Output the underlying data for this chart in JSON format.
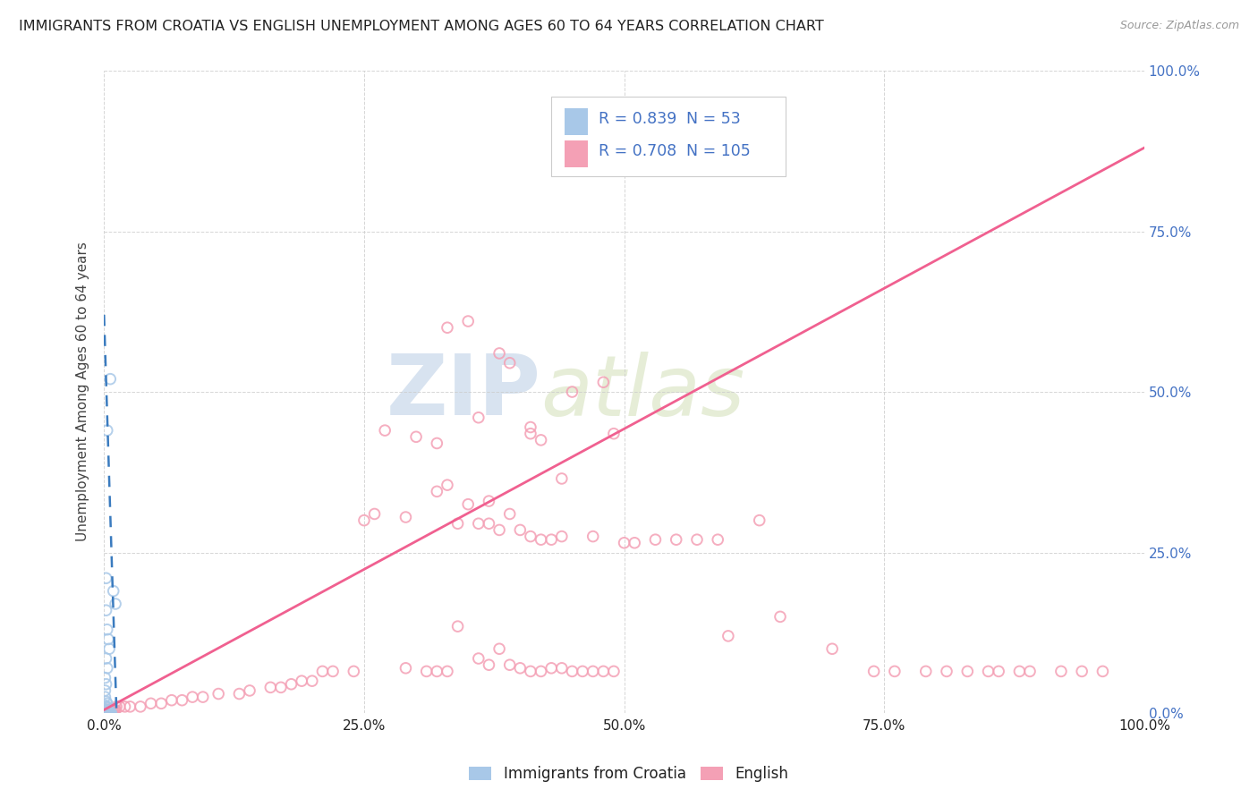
{
  "title": "IMMIGRANTS FROM CROATIA VS ENGLISH UNEMPLOYMENT AMONG AGES 60 TO 64 YEARS CORRELATION CHART",
  "source": "Source: ZipAtlas.com",
  "ylabel": "Unemployment Among Ages 60 to 64 years",
  "xlim": [
    0,
    1.0
  ],
  "ylim": [
    0,
    1.0
  ],
  "x_ticks": [
    0.0,
    0.25,
    0.5,
    0.75,
    1.0
  ],
  "x_tick_labels": [
    "0.0%",
    "25.0%",
    "50.0%",
    "75.0%",
    "100.0%"
  ],
  "right_y_ticks": [
    0.0,
    0.25,
    0.5,
    0.75,
    1.0
  ],
  "right_y_tick_labels": [
    "0.0%",
    "25.0%",
    "50.0%",
    "75.0%",
    "100.0%"
  ],
  "legend1_label": "Immigrants from Croatia",
  "legend2_label": "English",
  "R1": "0.839",
  "N1": "53",
  "R2": "0.708",
  "N2": "105",
  "blue_color": "#a8c8e8",
  "pink_color": "#f4a0b5",
  "blue_line_color": "#3a7bbf",
  "pink_line_color": "#f06090",
  "watermark_zip": "ZIP",
  "watermark_atlas": "atlas",
  "background_color": "#ffffff",
  "grid_color": "#cccccc",
  "title_color": "#222222",
  "axis_label_color": "#444444",
  "tick_color_right": "#4472c4",
  "blue_scatter": [
    [
      0.003,
      0.44
    ],
    [
      0.006,
      0.52
    ],
    [
      0.009,
      0.19
    ],
    [
      0.011,
      0.17
    ],
    [
      0.002,
      0.21
    ],
    [
      0.002,
      0.16
    ],
    [
      0.003,
      0.13
    ],
    [
      0.004,
      0.115
    ],
    [
      0.005,
      0.1
    ],
    [
      0.002,
      0.085
    ],
    [
      0.003,
      0.07
    ],
    [
      0.001,
      0.055
    ],
    [
      0.002,
      0.045
    ],
    [
      0.001,
      0.035
    ],
    [
      0.001,
      0.025
    ],
    [
      0.002,
      0.018
    ],
    [
      0.003,
      0.015
    ],
    [
      0.001,
      0.012
    ],
    [
      0.002,
      0.01
    ],
    [
      0.003,
      0.008
    ],
    [
      0.001,
      0.006
    ],
    [
      0.002,
      0.005
    ],
    [
      0.003,
      0.004
    ],
    [
      0.004,
      0.003
    ],
    [
      0.002,
      0.003
    ],
    [
      0.003,
      0.002
    ],
    [
      0.004,
      0.002
    ],
    [
      0.005,
      0.002
    ],
    [
      0.001,
      0.001
    ],
    [
      0.002,
      0.001
    ],
    [
      0.003,
      0.001
    ],
    [
      0.004,
      0.001
    ],
    [
      0.005,
      0.001
    ],
    [
      0.001,
      0.0
    ],
    [
      0.002,
      0.0
    ],
    [
      0.003,
      0.0
    ],
    [
      0.004,
      0.0
    ],
    [
      0.005,
      0.0
    ],
    [
      0.006,
      0.0
    ],
    [
      0.007,
      0.0
    ],
    [
      0.0,
      0.0
    ]
  ],
  "pink_scatter": [
    [
      0.35,
      0.61
    ],
    [
      0.38,
      0.56
    ],
    [
      0.27,
      0.44
    ],
    [
      0.3,
      0.43
    ],
    [
      0.32,
      0.42
    ],
    [
      0.33,
      0.355
    ],
    [
      0.32,
      0.345
    ],
    [
      0.35,
      0.325
    ],
    [
      0.41,
      0.445
    ],
    [
      0.44,
      0.365
    ],
    [
      0.49,
      0.435
    ],
    [
      0.48,
      0.515
    ],
    [
      0.45,
      0.5
    ],
    [
      0.41,
      0.435
    ],
    [
      0.42,
      0.425
    ],
    [
      0.36,
      0.46
    ],
    [
      0.33,
      0.6
    ],
    [
      0.39,
      0.545
    ],
    [
      0.37,
      0.33
    ],
    [
      0.36,
      0.295
    ],
    [
      0.38,
      0.285
    ],
    [
      0.39,
      0.31
    ],
    [
      0.4,
      0.285
    ],
    [
      0.41,
      0.275
    ],
    [
      0.42,
      0.27
    ],
    [
      0.43,
      0.27
    ],
    [
      0.44,
      0.275
    ],
    [
      0.37,
      0.295
    ],
    [
      0.34,
      0.295
    ],
    [
      0.29,
      0.305
    ],
    [
      0.26,
      0.31
    ],
    [
      0.25,
      0.3
    ],
    [
      0.34,
      0.135
    ],
    [
      0.36,
      0.085
    ],
    [
      0.37,
      0.075
    ],
    [
      0.38,
      0.1
    ],
    [
      0.39,
      0.075
    ],
    [
      0.4,
      0.07
    ],
    [
      0.41,
      0.065
    ],
    [
      0.42,
      0.065
    ],
    [
      0.43,
      0.07
    ],
    [
      0.46,
      0.065
    ],
    [
      0.47,
      0.065
    ],
    [
      0.48,
      0.065
    ],
    [
      0.49,
      0.065
    ],
    [
      0.44,
      0.07
    ],
    [
      0.45,
      0.065
    ],
    [
      0.29,
      0.07
    ],
    [
      0.31,
      0.065
    ],
    [
      0.32,
      0.065
    ],
    [
      0.33,
      0.065
    ],
    [
      0.21,
      0.065
    ],
    [
      0.22,
      0.065
    ],
    [
      0.24,
      0.065
    ],
    [
      0.19,
      0.05
    ],
    [
      0.2,
      0.05
    ],
    [
      0.18,
      0.045
    ],
    [
      0.16,
      0.04
    ],
    [
      0.17,
      0.04
    ],
    [
      0.14,
      0.035
    ],
    [
      0.13,
      0.03
    ],
    [
      0.11,
      0.03
    ],
    [
      0.095,
      0.025
    ],
    [
      0.085,
      0.025
    ],
    [
      0.075,
      0.02
    ],
    [
      0.065,
      0.02
    ],
    [
      0.055,
      0.015
    ],
    [
      0.045,
      0.015
    ],
    [
      0.035,
      0.01
    ],
    [
      0.025,
      0.01
    ],
    [
      0.02,
      0.01
    ],
    [
      0.015,
      0.01
    ],
    [
      0.012,
      0.01
    ],
    [
      0.011,
      0.005
    ],
    [
      0.01,
      0.005
    ],
    [
      0.009,
      0.005
    ],
    [
      0.008,
      0.005
    ],
    [
      0.007,
      0.005
    ],
    [
      0.006,
      0.005
    ],
    [
      0.005,
      0.005
    ],
    [
      0.004,
      0.005
    ],
    [
      0.003,
      0.005
    ],
    [
      0.002,
      0.003
    ],
    [
      0.001,
      0.003
    ],
    [
      0.6,
      0.12
    ],
    [
      0.7,
      0.1
    ],
    [
      0.74,
      0.065
    ],
    [
      0.76,
      0.065
    ],
    [
      0.79,
      0.065
    ],
    [
      0.81,
      0.065
    ],
    [
      0.83,
      0.065
    ],
    [
      0.85,
      0.065
    ],
    [
      0.86,
      0.065
    ],
    [
      0.88,
      0.065
    ],
    [
      0.89,
      0.065
    ],
    [
      0.92,
      0.065
    ],
    [
      0.94,
      0.065
    ],
    [
      0.96,
      0.065
    ],
    [
      0.47,
      0.275
    ],
    [
      0.5,
      0.265
    ],
    [
      0.51,
      0.265
    ],
    [
      0.53,
      0.27
    ],
    [
      0.55,
      0.27
    ],
    [
      0.57,
      0.27
    ],
    [
      0.59,
      0.27
    ],
    [
      0.63,
      0.3
    ],
    [
      0.65,
      0.15
    ]
  ],
  "blue_trend_x": [
    0.0,
    0.012
  ],
  "blue_trend_y": [
    0.62,
    0.0
  ],
  "pink_trend_x": [
    0.0,
    1.0
  ],
  "pink_trend_y": [
    0.005,
    0.88
  ]
}
